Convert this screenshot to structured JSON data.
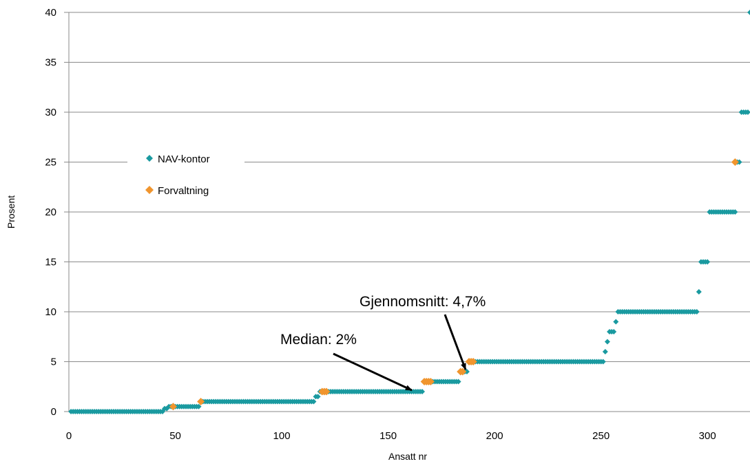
{
  "chart_data": {
    "type": "scatter",
    "xlabel": "Ansatt nr",
    "ylabel": "Prosent",
    "xlim": [
      0,
      320
    ],
    "ylim": [
      0,
      40
    ],
    "x_ticks": [
      0,
      50,
      100,
      150,
      200,
      250,
      300
    ],
    "y_ticks": [
      0,
      5,
      10,
      15,
      20,
      25,
      30,
      35,
      40
    ],
    "grid": "horizontal",
    "legend_position": "left",
    "colors": {
      "NAV-kontor": "#1a9aa0",
      "Forvaltning": "#f0952e"
    },
    "series": [
      {
        "name": "NAV-kontor",
        "runs": [
          {
            "x_from": 1,
            "x_to": 44,
            "y": 0
          },
          {
            "x_from": 45,
            "x_to": 46,
            "y": 0.3
          },
          {
            "x_from": 47,
            "x_to": 61,
            "y": 0.5
          },
          {
            "x_from": 62,
            "x_to": 115,
            "y": 1
          },
          {
            "x_from": 116,
            "x_to": 117,
            "y": 1.5
          },
          {
            "x_from": 118,
            "x_to": 166,
            "y": 2
          },
          {
            "x_from": 167,
            "x_to": 183,
            "y": 3
          },
          {
            "x_from": 184,
            "x_to": 187,
            "y": 4
          },
          {
            "x_from": 188,
            "x_to": 251,
            "y": 5
          },
          {
            "x_from": 252,
            "x_to": 252,
            "y": 6
          },
          {
            "x_from": 253,
            "x_to": 253,
            "y": 7
          },
          {
            "x_from": 254,
            "x_to": 256,
            "y": 8
          },
          {
            "x_from": 257,
            "x_to": 257,
            "y": 9
          },
          {
            "x_from": 258,
            "x_to": 295,
            "y": 10
          },
          {
            "x_from": 296,
            "x_to": 296,
            "y": 12
          },
          {
            "x_from": 297,
            "x_to": 300,
            "y": 15
          },
          {
            "x_from": 301,
            "x_to": 313,
            "y": 20
          },
          {
            "x_from": 314,
            "x_to": 315,
            "y": 25
          },
          {
            "x_from": 316,
            "x_to": 319,
            "y": 30
          },
          {
            "x_from": 320,
            "x_to": 320,
            "y": 40
          }
        ]
      },
      {
        "name": "Forvaltning",
        "points": [
          {
            "x": 49,
            "y": 0.5
          },
          {
            "x": 62,
            "y": 1
          },
          {
            "x": 119,
            "y": 2
          },
          {
            "x": 120,
            "y": 2
          },
          {
            "x": 121,
            "y": 2
          },
          {
            "x": 167,
            "y": 3
          },
          {
            "x": 168,
            "y": 3
          },
          {
            "x": 169,
            "y": 3
          },
          {
            "x": 170,
            "y": 3
          },
          {
            "x": 184,
            "y": 4
          },
          {
            "x": 185,
            "y": 4
          },
          {
            "x": 188,
            "y": 5
          },
          {
            "x": 189,
            "y": 5
          },
          {
            "x": 190,
            "y": 5
          },
          {
            "x": 313,
            "y": 25
          }
        ]
      }
    ],
    "annotations": [
      {
        "text": "Median: 2%",
        "arrow_to": {
          "x": 161,
          "y": 2
        }
      },
      {
        "text": "Gjennomsnitt: 4,7%",
        "arrow_to": {
          "x": 186,
          "y": 4
        }
      }
    ]
  }
}
